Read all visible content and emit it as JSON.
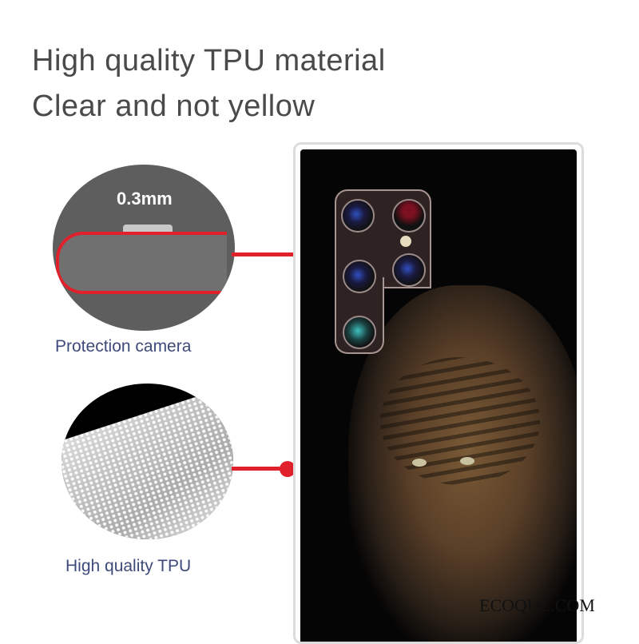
{
  "headline": {
    "line1": "High quality TPU material",
    "line2": "Clear and not yellow"
  },
  "callouts": [
    {
      "label": "0.3mm",
      "caption": "Protection camera"
    },
    {
      "caption": "High quality TPU"
    }
  ],
  "watermark": "ECOQUE.COM",
  "colors": {
    "accent": "#e0202a",
    "caption": "#3e4a7a",
    "headline": "#4a4a4a"
  }
}
